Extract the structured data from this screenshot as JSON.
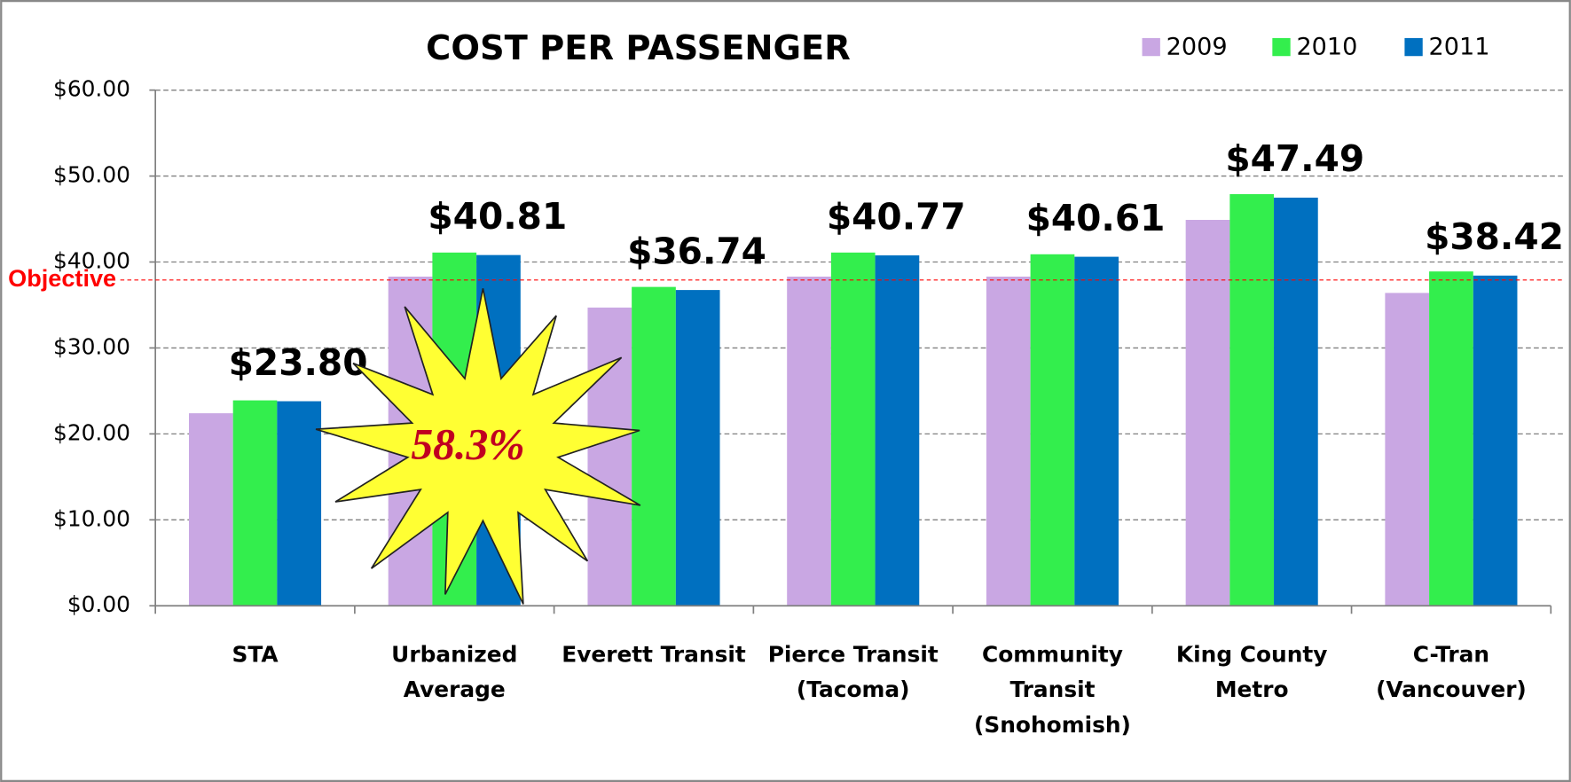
{
  "chart_data": {
    "type": "bar",
    "title": "COST PER PASSENGER",
    "categories": [
      [
        "STA"
      ],
      [
        "Urbanized",
        "Average"
      ],
      [
        "Everett Transit"
      ],
      [
        "Pierce Transit",
        "(Tacoma)"
      ],
      [
        "Community",
        "Transit",
        "(Snohomish)"
      ],
      [
        "King County",
        "Metro"
      ],
      [
        "C-Tran",
        "(Vancouver)"
      ]
    ],
    "series": [
      {
        "name": "2009",
        "color": "#c9a7e3",
        "values": [
          22.4,
          38.3,
          34.7,
          38.3,
          38.3,
          44.9,
          36.4
        ]
      },
      {
        "name": "2010",
        "color": "#33ee4d",
        "values": [
          23.9,
          41.1,
          37.1,
          41.1,
          40.9,
          47.9,
          38.9
        ]
      },
      {
        "name": "2011",
        "color": "#0070c0",
        "values": [
          23.8,
          40.81,
          36.74,
          40.77,
          40.61,
          47.49,
          38.42
        ],
        "value_labels": [
          "$23.80",
          "$40.81",
          "$36.74",
          "$40.77",
          "$40.61",
          "$47.49",
          "$38.42"
        ]
      }
    ],
    "ylim": [
      0,
      60
    ],
    "yticks": [
      {
        "value": 0,
        "label": "$0.00"
      },
      {
        "value": 10,
        "label": "$10.00"
      },
      {
        "value": 20,
        "label": "$20.00"
      },
      {
        "value": 30,
        "label": "$30.00"
      },
      {
        "value": 40,
        "label": "$40.00"
      },
      {
        "value": 50,
        "label": "$50.00"
      },
      {
        "value": 60,
        "label": "$60.00"
      }
    ],
    "grid": true,
    "legend": "top-right",
    "objective": {
      "label": "Objective",
      "value": 37.9,
      "color": "#ff0000"
    },
    "annotation": "58.3%"
  }
}
